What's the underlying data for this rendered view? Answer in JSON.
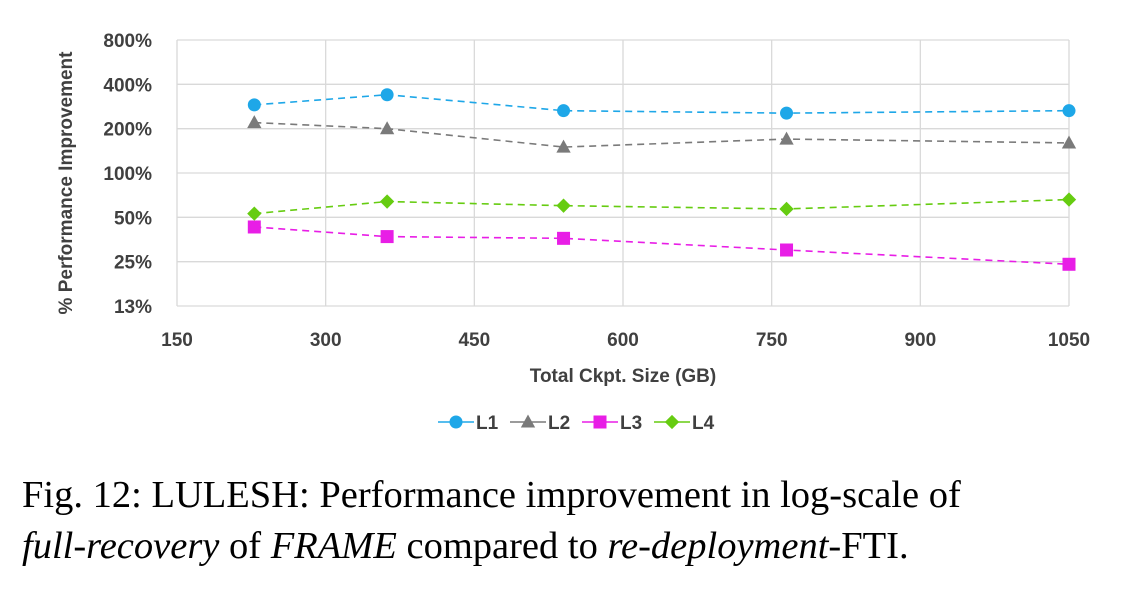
{
  "chart_data": {
    "type": "line",
    "title": "",
    "xlabel": "Total Ckpt. Size (GB)",
    "ylabel": "% Performance Improvement",
    "yscale": "log2",
    "xlim": [
      150,
      1050
    ],
    "ylim": [
      13,
      800
    ],
    "x_ticks": [
      150,
      300,
      450,
      600,
      750,
      900,
      1050
    ],
    "x_tick_labels": [
      "150",
      "300",
      "450",
      "600",
      "750",
      "900",
      "1050"
    ],
    "y_ticks": [
      12.5,
      25,
      50,
      100,
      200,
      400,
      800
    ],
    "y_tick_labels": [
      "13%",
      "25%",
      "50%",
      "100%",
      "200%",
      "400%",
      "800%"
    ],
    "x": [
      228,
      362,
      540,
      765,
      1050
    ],
    "grid": true,
    "legend_position": "bottom",
    "series": [
      {
        "name": "L1",
        "values": [
          290,
          340,
          265,
          255,
          265
        ],
        "color": "#1ea7e8",
        "marker": "circle"
      },
      {
        "name": "L2",
        "values": [
          220,
          200,
          150,
          170,
          160
        ],
        "color": "#7a7a7a",
        "marker": "triangle"
      },
      {
        "name": "L3",
        "values": [
          43,
          37,
          36,
          30,
          24
        ],
        "color": "#e81ee6",
        "marker": "square"
      },
      {
        "name": "L4",
        "values": [
          53,
          64,
          60,
          57,
          66
        ],
        "color": "#66cc11",
        "marker": "diamond"
      }
    ]
  },
  "caption": {
    "label": "Fig. 12:",
    "text_a": " LULESH: Performance improvement in log-scale of",
    "em_a": "full-recovery",
    "text_b": " of ",
    "em_b": "FRAME",
    "text_c": " compared to ",
    "em_c": "re-deployment",
    "text_d": "-FTI."
  }
}
